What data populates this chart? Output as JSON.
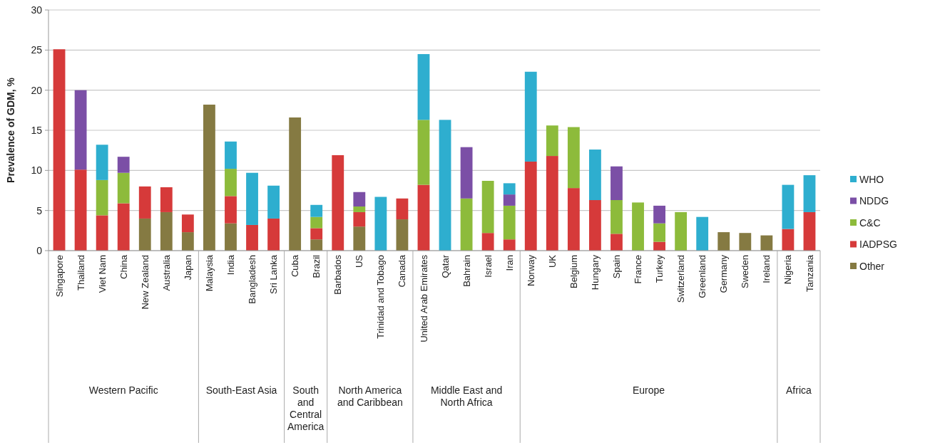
{
  "chart_data": {
    "type": "bar",
    "stacked": true,
    "ylabel": "Prevalence of GDM, %",
    "ylim": [
      0,
      30
    ],
    "yticks": [
      0,
      5,
      10,
      15,
      20,
      25,
      30
    ],
    "grid": "y",
    "legend": "right",
    "categories": [
      "Singapore",
      "Thailand",
      "Viet Nam",
      "China",
      "New Zealand",
      "Australia",
      "Japan",
      "Malaysia",
      "India",
      "Bangladesh",
      "Sri Lanka",
      "Cuba",
      "Brazil",
      "Barbados",
      "US",
      "Trinidad and Tobago",
      "Canada",
      "United Arab Emirates",
      "Qatar",
      "Bahrain",
      "Israel",
      "Iran",
      "Norway",
      "UK",
      "Belgium",
      "Hungary",
      "Spain",
      "France",
      "Turkey",
      "Switzerland",
      "Greenland",
      "Germany",
      "Sweden",
      "Ireland",
      "Nigeria",
      "Tanzania"
    ],
    "series": [
      {
        "name": "Other",
        "color": "#857a42",
        "values": [
          null,
          null,
          null,
          null,
          4.0,
          4.8,
          2.3,
          18.2,
          3.4,
          null,
          null,
          16.6,
          1.4,
          null,
          3.0,
          null,
          3.9,
          null,
          null,
          null,
          null,
          null,
          null,
          null,
          null,
          null,
          null,
          null,
          null,
          null,
          null,
          2.3,
          2.2,
          1.9,
          null,
          null
        ]
      },
      {
        "name": "IADPSG",
        "color": "#d63a3a",
        "values": [
          25.1,
          10.1,
          4.4,
          5.9,
          4.0,
          3.1,
          2.2,
          null,
          3.4,
          3.2,
          4.0,
          null,
          1.4,
          11.9,
          1.8,
          null,
          2.6,
          8.2,
          null,
          null,
          2.2,
          1.4,
          11.1,
          11.8,
          7.8,
          6.3,
          2.1,
          null,
          1.1,
          null,
          null,
          null,
          null,
          null,
          2.7,
          4.8
        ]
      },
      {
        "name": "C&C",
        "color": "#8dbb3b",
        "values": [
          null,
          null,
          4.4,
          3.8,
          null,
          null,
          null,
          null,
          3.4,
          null,
          null,
          null,
          1.4,
          null,
          0.7,
          null,
          null,
          8.1,
          null,
          6.5,
          6.5,
          4.2,
          null,
          3.8,
          7.6,
          null,
          4.2,
          6.0,
          2.3,
          4.8,
          null,
          null,
          null,
          null,
          null,
          null
        ]
      },
      {
        "name": "NDDG",
        "color": "#7b4fa6",
        "values": [
          null,
          9.9,
          null,
          2.0,
          null,
          null,
          null,
          null,
          null,
          null,
          null,
          null,
          null,
          null,
          1.8,
          null,
          null,
          null,
          null,
          6.4,
          null,
          1.4,
          null,
          null,
          null,
          null,
          4.2,
          null,
          2.2,
          null,
          null,
          null,
          null,
          null,
          null,
          null
        ]
      },
      {
        "name": "WHO",
        "color": "#2eaecf",
        "values": [
          null,
          null,
          4.4,
          null,
          null,
          null,
          null,
          null,
          3.4,
          6.5,
          4.1,
          null,
          1.5,
          null,
          null,
          6.7,
          null,
          8.2,
          16.3,
          null,
          null,
          1.4,
          11.2,
          null,
          null,
          6.3,
          null,
          null,
          null,
          null,
          4.2,
          null,
          null,
          null,
          5.5,
          4.6
        ]
      }
    ],
    "annotations": [
      "Western Pacific",
      "South-East Asia",
      "South and Central America",
      "North America and Caribbean",
      "Middle East and North Africa",
      "Europe",
      "Africa"
    ]
  }
}
